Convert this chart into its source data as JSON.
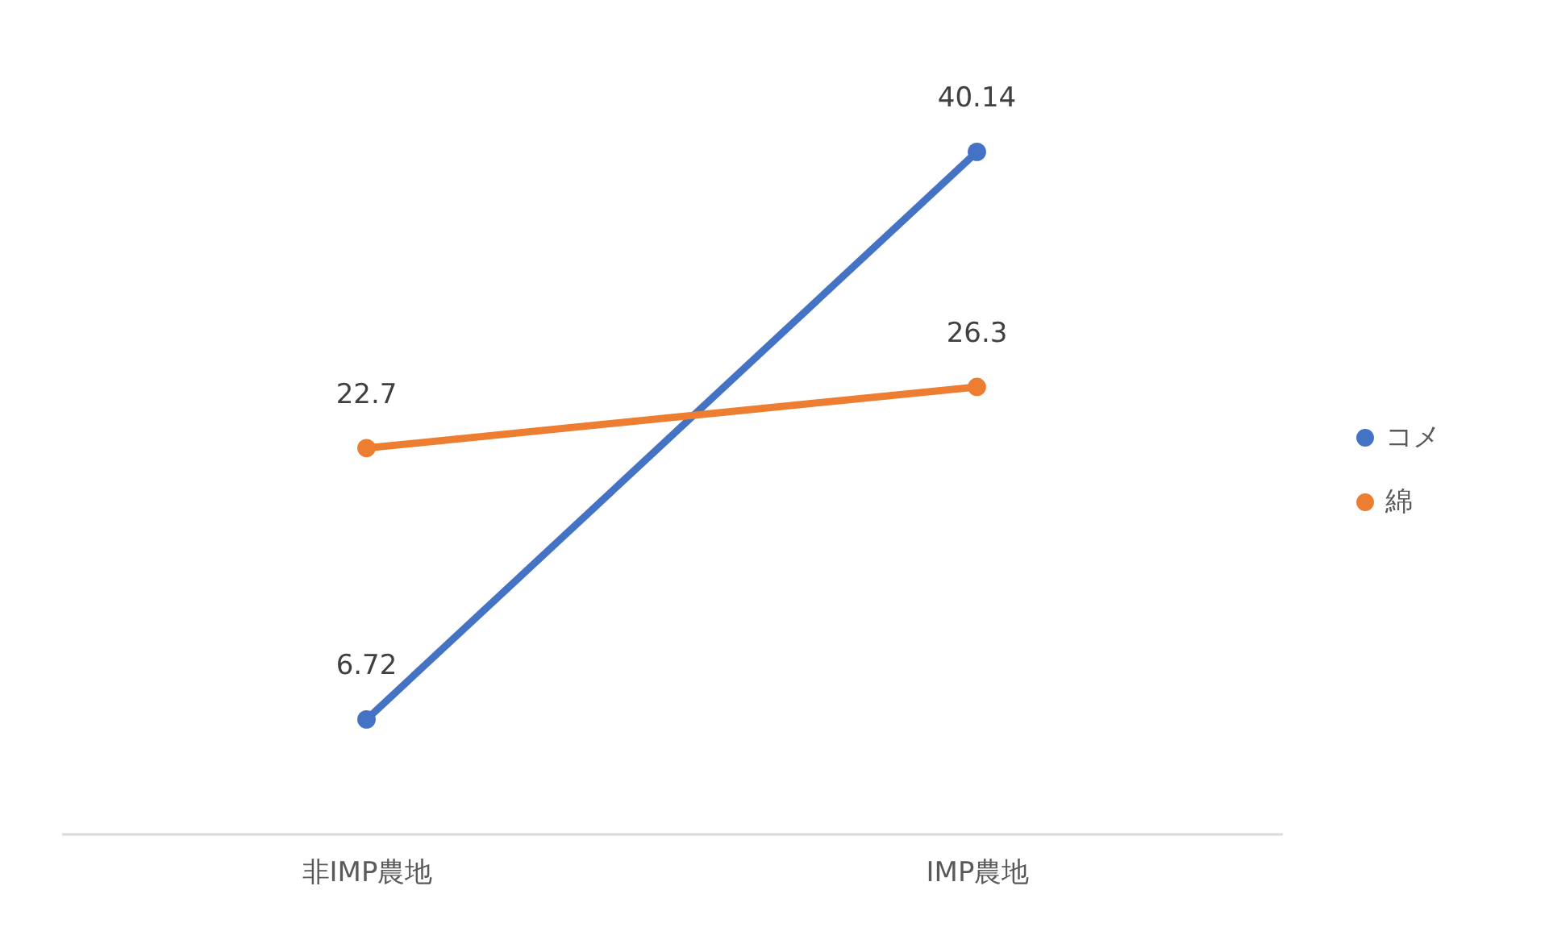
{
  "chart_data": {
    "type": "line",
    "categories": [
      "非IMP農地",
      "IMP農地"
    ],
    "series": [
      {
        "name": "コメ",
        "color": "#4472c4",
        "values": [
          6.72,
          40.14
        ]
      },
      {
        "name": "綿",
        "color": "#ed7d31",
        "values": [
          22.7,
          26.3
        ]
      }
    ],
    "data_labels": true,
    "legend": "right",
    "marker": "circle",
    "line_style": "solid",
    "grid": false
  }
}
